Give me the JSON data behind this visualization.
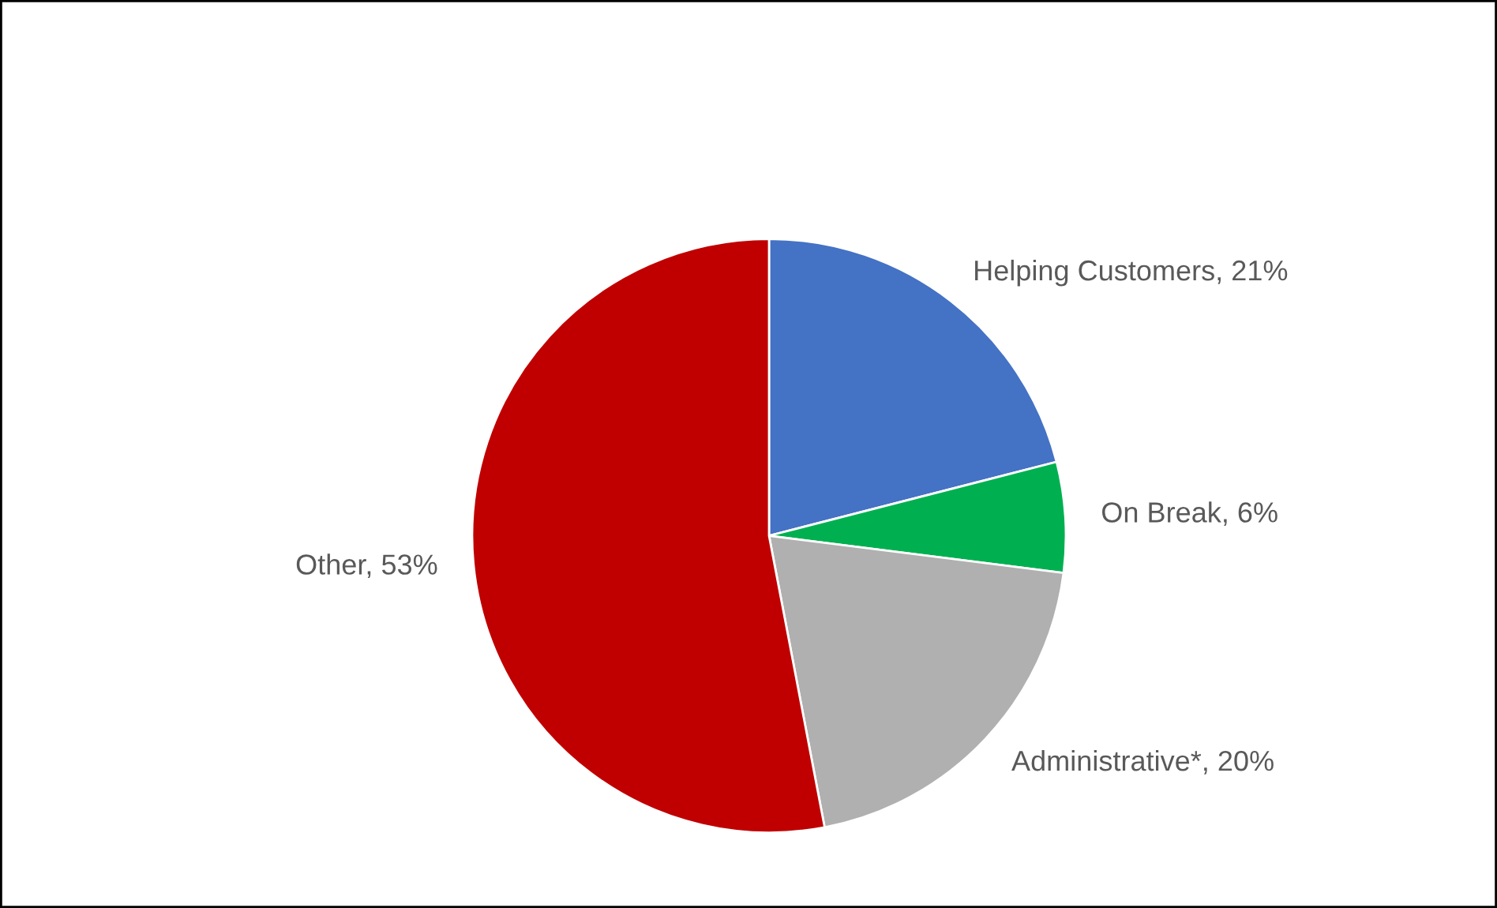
{
  "chart_data": {
    "type": "pie",
    "categories": [
      "Helping Customers",
      "On Break",
      "Administrative*",
      "Other"
    ],
    "values": [
      21,
      6,
      20,
      53
    ],
    "value_labels": [
      "21%",
      "6%",
      "20%",
      "53%"
    ],
    "colors": [
      "#4472c4",
      "#00b050",
      "#b0b0b0",
      "#c00000"
    ],
    "legend": false
  }
}
